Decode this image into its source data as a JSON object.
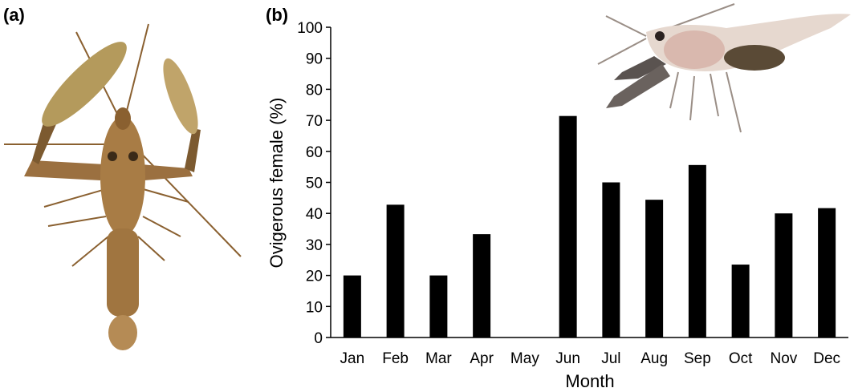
{
  "panels": {
    "a_label": "(a)",
    "b_label": "(b)"
  },
  "images": {
    "left": "shrimp-photo-dorsal-view",
    "right": "ovigerous-shrimp-photo-lateral-view"
  },
  "colors": {
    "bars": "#000000",
    "axis": "#000000",
    "shrimp_left_body": "#a87c45",
    "shrimp_right_body": "#e6d8cf",
    "eggs": "#5a4a36"
  },
  "chart_data": {
    "type": "bar",
    "title": "",
    "xlabel": "Month",
    "ylabel": "Ovigerous female (%)",
    "categories": [
      "Jan",
      "Feb",
      "Mar",
      "Apr",
      "May",
      "Jun",
      "Jul",
      "Aug",
      "Sep",
      "Oct",
      "Nov",
      "Dec"
    ],
    "values": [
      20,
      42.8,
      20,
      33.3,
      0,
      71.4,
      50,
      44.4,
      55.6,
      23.5,
      40,
      41.7
    ],
    "ylim": [
      0,
      100
    ],
    "yticks": [
      "0",
      "10",
      "20",
      "30",
      "40",
      "50",
      "60",
      "70",
      "80",
      "90",
      "100"
    ],
    "grid": false,
    "legend": "none"
  }
}
